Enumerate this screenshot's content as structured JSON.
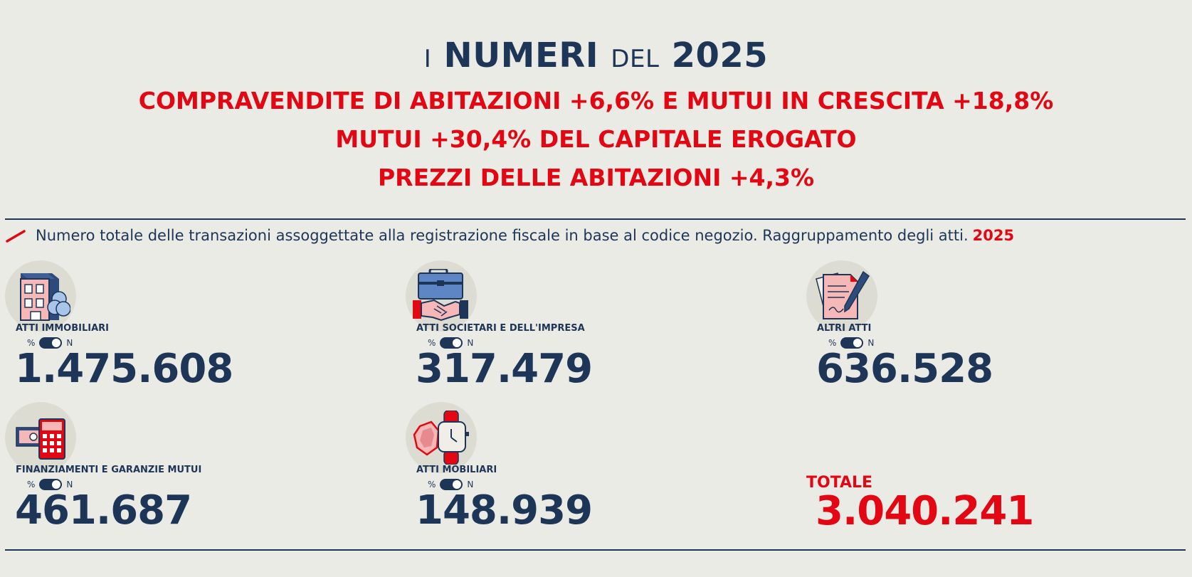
{
  "header": {
    "title_prefix": "I",
    "title_main": "NUMERI",
    "title_mid": "DEL",
    "title_year": "2025",
    "headlines": [
      "COMPRAVENDITE DI ABITAZIONI +6,6% E MUTUI IN CRESCITA +18,8%",
      "MUTUI +30,4% DEL CAPITALE EROGATO",
      "PREZZI DELLE ABITAZIONI +4,3%"
    ]
  },
  "description": {
    "text": "Numero totale delle transazioni assoggettate alla registrazione fiscale in base al codice negozio. Raggruppamento degli atti.",
    "year": "2025"
  },
  "toggle": {
    "left_label": "%",
    "right_label": "N",
    "state": "N"
  },
  "cards": [
    {
      "label": "ATTI IMMOBILIARI",
      "value": "1.475.608",
      "icon": "building-icon"
    },
    {
      "label": "ATTI SOCIETARI E DELL'IMPRESA",
      "value": "317.479",
      "icon": "handshake-briefcase-icon"
    },
    {
      "label": "ALTRI ATTI",
      "value": "636.528",
      "icon": "document-pen-icon"
    },
    {
      "label": "FINANZIAMENTI E GARANZIE MUTUI",
      "value": "461.687",
      "icon": "calculator-money-icon"
    },
    {
      "label": "ATTI MOBILIARI",
      "value": "148.939",
      "icon": "jewel-watch-icon"
    }
  ],
  "total": {
    "label": "TOTALE",
    "value": "3.040.241"
  },
  "colors": {
    "background": "#ebebe6",
    "navy": "#1d3557",
    "red": "#e30613",
    "icon_circle": "#dcdcd2"
  }
}
